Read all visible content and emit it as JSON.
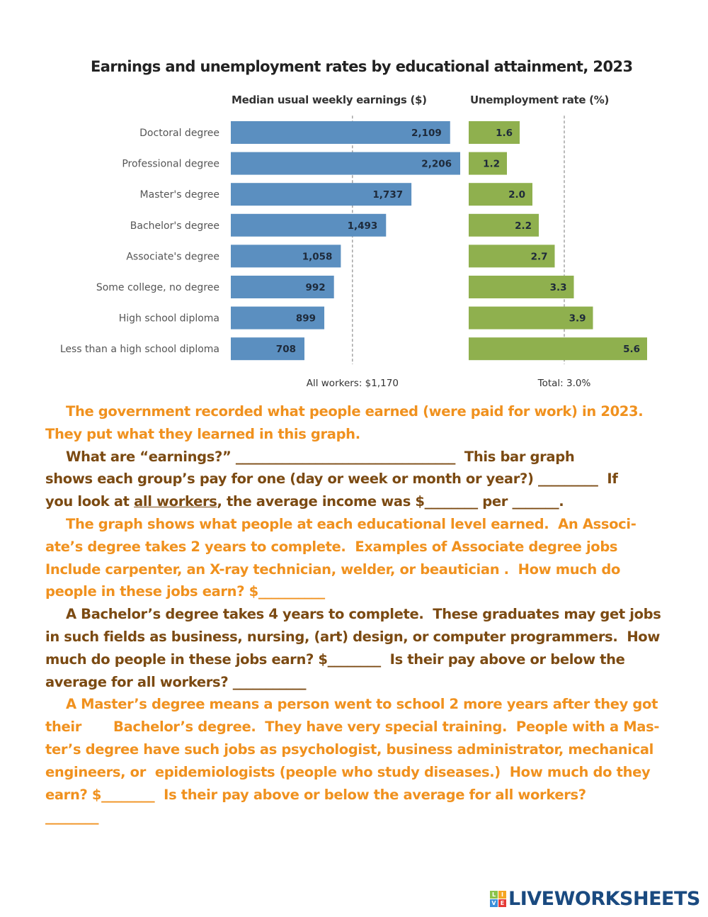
{
  "chart_data": {
    "type": "bar",
    "title": "Earnings and unemployment rates by educational attainment, 2023",
    "categories": [
      "Doctoral degree",
      "Professional degree",
      "Master's degree",
      "Bachelor's degree",
      "Associate's degree",
      "Some college, no degree",
      "High school diploma",
      "Less than a high school diploma"
    ],
    "series": [
      {
        "name": "Median usual weekly earnings ($)",
        "values": [
          2109,
          2206,
          1737,
          1493,
          1058,
          992,
          899,
          708
        ],
        "labels": [
          "2,109",
          "2,206",
          "1,737",
          "1,493",
          "1,058",
          "992",
          "899",
          "708"
        ],
        "color": "#5b8fc0",
        "reference": {
          "value": 1170,
          "label": "All workers: $1,170"
        }
      },
      {
        "name": "Unemployment rate (%)",
        "values": [
          1.6,
          1.2,
          2.0,
          2.2,
          2.7,
          3.3,
          3.9,
          5.6
        ],
        "labels": [
          "1.6",
          "1.2",
          "2.0",
          "2.2",
          "2.7",
          "3.3",
          "3.9",
          "5.6"
        ],
        "color": "#8fb04e",
        "reference": {
          "value": 3.0,
          "label": "Total: 3.0%"
        }
      }
    ]
  },
  "text": {
    "lines": [
      {
        "indent": true,
        "color": "o",
        "parts": [
          {
            "t": "The government recorded what people earned (were paid for work) in 2023."
          }
        ]
      },
      {
        "indent": false,
        "color": "o",
        "parts": [
          {
            "t": "They put what they learned in this graph."
          }
        ]
      },
      {
        "indent": true,
        "color": "b",
        "parts": [
          {
            "t": "What are “earnings?” _________________________________  This bar graph"
          }
        ]
      },
      {
        "indent": false,
        "color": "b",
        "parts": [
          {
            "t": "shows each group’s pay for one (day or week or month or year?) _________  If"
          }
        ]
      },
      {
        "indent": false,
        "color": "b",
        "parts": [
          {
            "t": "you look at "
          },
          {
            "t": "all workers",
            "u": true
          },
          {
            "t": ", the average income was $________ per _______."
          }
        ]
      },
      {
        "indent": true,
        "color": "o",
        "parts": [
          {
            "t": "The graph shows what people at each educational level earned.  An Associ-"
          }
        ]
      },
      {
        "indent": false,
        "color": "o",
        "parts": [
          {
            "t": "ate’s degree takes 2 years to complete.  Examples of Associate degree jobs"
          }
        ]
      },
      {
        "indent": false,
        "color": "o",
        "parts": [
          {
            "t": "Include carpenter, an X-ray technician, welder, or beautician .  How much do"
          }
        ]
      },
      {
        "indent": false,
        "color": "o",
        "parts": [
          {
            "t": "people in these jobs earn? $__________"
          }
        ]
      },
      {
        "indent": true,
        "color": "b",
        "parts": [
          {
            "t": "A Bachelor’s degree takes 4 years to complete.  These graduates may get jobs"
          }
        ]
      },
      {
        "indent": false,
        "color": "b",
        "parts": [
          {
            "t": "in such fields as business, nursing, (art) design, or computer programmers.  How"
          }
        ]
      },
      {
        "indent": false,
        "color": "b",
        "parts": [
          {
            "t": "much do people in these jobs earn? $________  Is their pay above or below the"
          }
        ]
      },
      {
        "indent": false,
        "color": "b",
        "parts": [
          {
            "t": "average for all workers? ___________"
          }
        ]
      },
      {
        "indent": true,
        "color": "o",
        "parts": [
          {
            "t": "A Master’s degree means a person went to school 2 more years after they got"
          }
        ]
      },
      {
        "indent": false,
        "color": "o",
        "parts": [
          {
            "t": "their       Bachelor’s degree.  They have very special training.  People with a Mas-"
          }
        ]
      },
      {
        "indent": false,
        "color": "o",
        "parts": [
          {
            "t": "ter’s degree have such jobs as psychologist, business administrator, mechanical"
          }
        ]
      },
      {
        "indent": false,
        "color": "o",
        "parts": [
          {
            "t": "engineers, or  epidemiologists (people who study diseases.)  How much do they"
          }
        ]
      },
      {
        "indent": false,
        "color": "o",
        "parts": [
          {
            "t": "earn? $________  Is their pay above or below the average for all workers?"
          }
        ]
      },
      {
        "indent": false,
        "color": "o",
        "parts": [
          {
            "t": "________"
          }
        ]
      }
    ]
  },
  "logo": {
    "cubes": [
      "L",
      "I",
      "V",
      "E"
    ],
    "word": "LIVEWORKSHEETS"
  }
}
